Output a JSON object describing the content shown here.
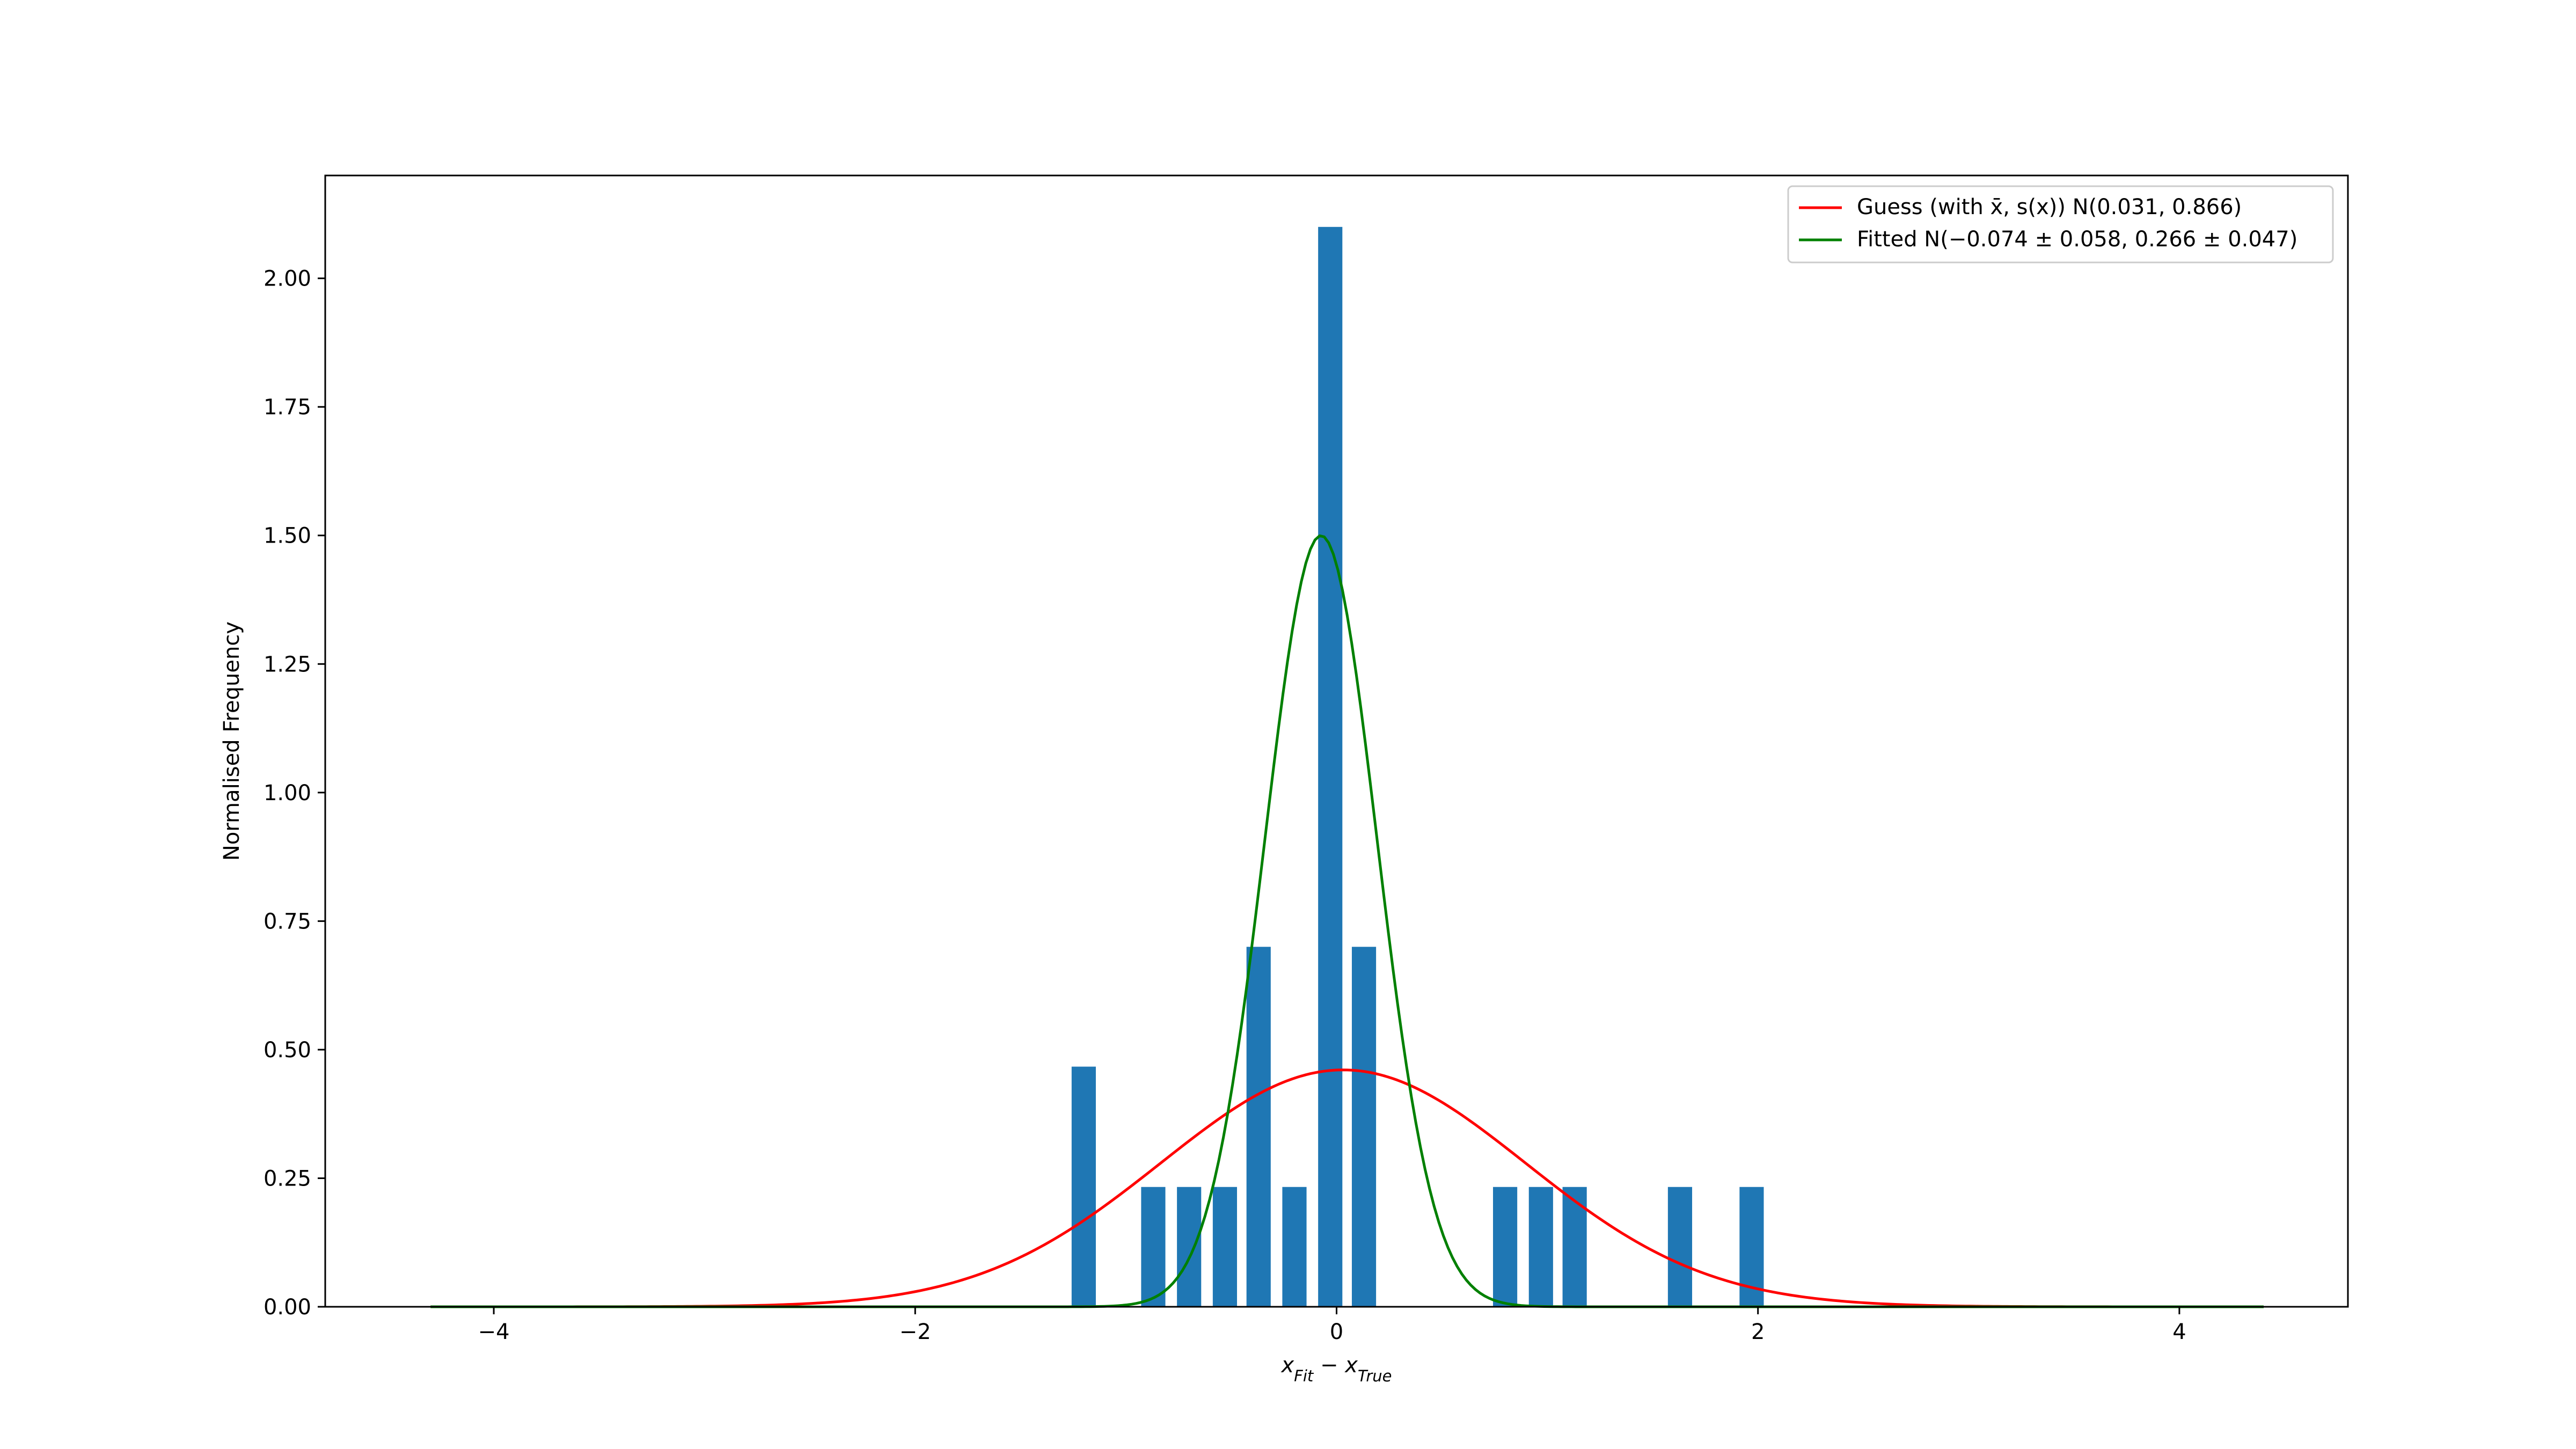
{
  "chart_data": {
    "type": "bar",
    "xlabel": "x_{Fit} − x_{True}",
    "ylabel": "Normalised Frequency",
    "xlim": [
      -4.8,
      4.8
    ],
    "ylim": [
      0,
      2.2
    ],
    "x_ticks": [
      -4,
      -2,
      0,
      2,
      4
    ],
    "x_tick_labels": [
      "−4",
      "−2",
      "0",
      "2",
      "4"
    ],
    "y_ticks": [
      0,
      0.25,
      0.5,
      0.75,
      1.0,
      1.25,
      1.5,
      1.75,
      2.0
    ],
    "y_tick_labels": [
      "0.00",
      "0.25",
      "0.50",
      "0.75",
      "1.00",
      "1.25",
      "1.50",
      "1.75",
      "2.00"
    ],
    "grid": false,
    "legend_position": "top-right",
    "bar_color": "#1f77b4",
    "bar_width": 0.115,
    "bars": [
      {
        "x": -1.2,
        "value": 0.467
      },
      {
        "x": -0.87,
        "value": 0.233
      },
      {
        "x": -0.7,
        "value": 0.233
      },
      {
        "x": -0.53,
        "value": 0.233
      },
      {
        "x": -0.37,
        "value": 0.7
      },
      {
        "x": -0.2,
        "value": 0.233
      },
      {
        "x": -0.03,
        "value": 2.1
      },
      {
        "x": 0.13,
        "value": 0.7
      },
      {
        "x": 0.8,
        "value": 0.233
      },
      {
        "x": 0.97,
        "value": 0.233
      },
      {
        "x": 1.13,
        "value": 0.233
      },
      {
        "x": 1.63,
        "value": 0.233
      },
      {
        "x": 1.97,
        "value": 0.233
      }
    ],
    "series": [
      {
        "name": "Guess (with x̄, s(x)) N(0.031, 0.866)",
        "kind": "normal_curve",
        "color": "#ff0000",
        "mean": 0.031,
        "sd": 0.866,
        "x_range": [
          -4.3,
          4.4
        ]
      },
      {
        "name": "Fitted N(−0.074 ± 0.058, 0.266 ± 0.047)",
        "kind": "normal_curve",
        "color": "#008000",
        "mean": -0.074,
        "sd": 0.266,
        "x_range": [
          -4.3,
          4.4
        ]
      }
    ]
  }
}
